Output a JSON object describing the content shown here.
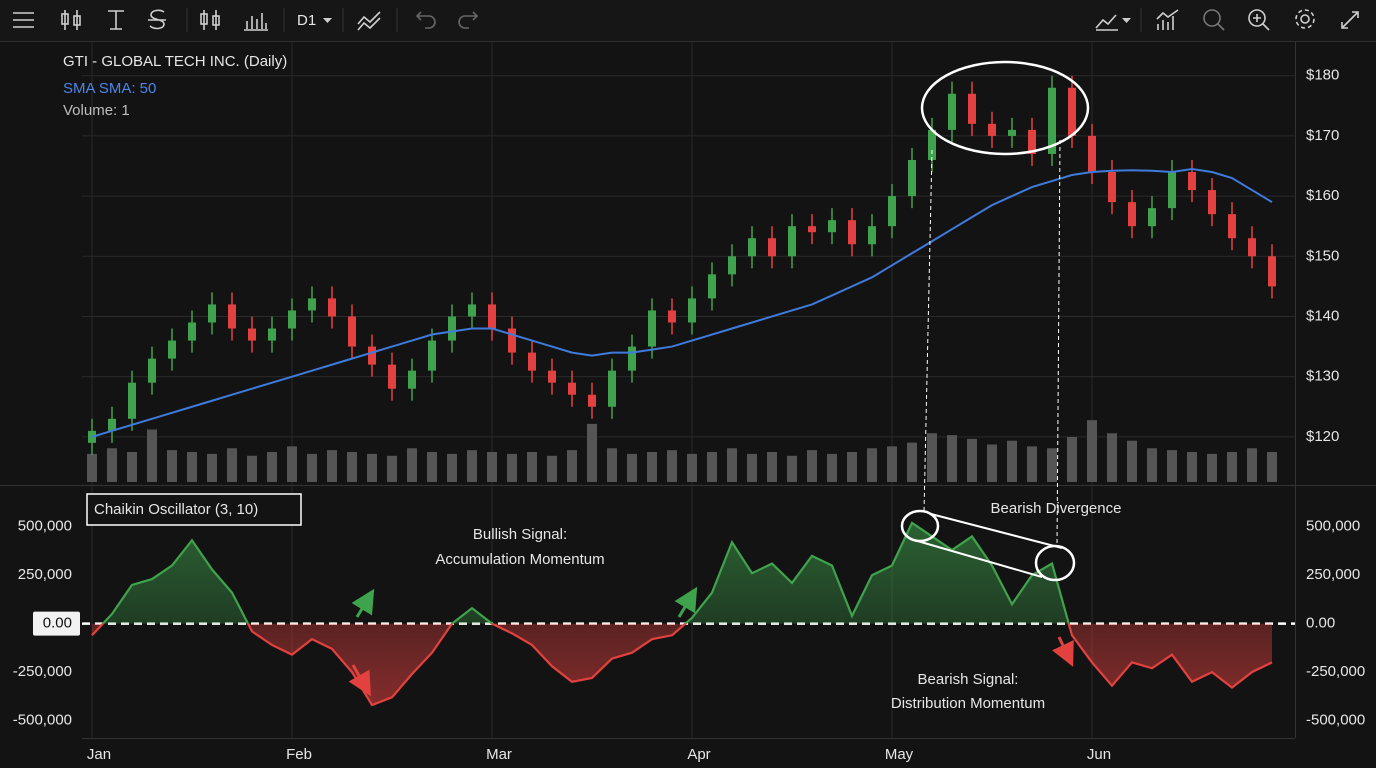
{
  "toolbar": {
    "timeframe": "D1"
  },
  "chart_data": [
    {
      "type": "candlestick",
      "title": "GTI - GLOBAL TECH INC. (Daily)",
      "open": [
        119,
        121,
        123,
        129,
        133,
        136,
        139,
        142,
        138,
        136,
        138,
        141,
        143,
        140,
        135,
        132,
        128,
        131,
        136,
        140,
        142,
        138,
        134,
        131,
        129,
        127,
        125,
        131,
        135,
        141,
        139,
        143,
        147,
        150,
        153,
        150,
        155,
        154,
        156,
        152,
        155,
        160,
        166,
        171,
        177,
        172,
        170,
        171,
        167,
        178,
        170,
        164,
        159,
        155,
        158,
        164,
        161,
        157,
        153,
        150
      ],
      "high": [
        123,
        125,
        131,
        135,
        138,
        141,
        144,
        144,
        140,
        140,
        143,
        145,
        145,
        142,
        137,
        134,
        133,
        138,
        142,
        144,
        144,
        140,
        136,
        133,
        131,
        129,
        133,
        137,
        143,
        143,
        145,
        149,
        152,
        155,
        155,
        157,
        157,
        158,
        158,
        157,
        162,
        168,
        173,
        179,
        179,
        174,
        173,
        173,
        180,
        180,
        172,
        166,
        161,
        160,
        166,
        166,
        163,
        159,
        155,
        152
      ],
      "low": [
        117,
        119,
        121,
        127,
        131,
        134,
        137,
        136,
        134,
        134,
        136,
        139,
        138,
        133,
        130,
        126,
        126,
        129,
        134,
        138,
        136,
        132,
        129,
        127,
        125,
        123,
        123,
        129,
        133,
        137,
        137,
        141,
        145,
        148,
        148,
        148,
        152,
        152,
        150,
        150,
        153,
        158,
        164,
        169,
        170,
        168,
        168,
        165,
        165,
        168,
        162,
        157,
        153,
        153,
        156,
        159,
        155,
        151,
        148,
        143
      ],
      "close": [
        121,
        123,
        129,
        133,
        136,
        139,
        142,
        138,
        136,
        138,
        141,
        143,
        140,
        135,
        132,
        128,
        131,
        136,
        140,
        142,
        138,
        134,
        131,
        129,
        127,
        125,
        131,
        135,
        141,
        139,
        143,
        147,
        150,
        153,
        150,
        155,
        154,
        156,
        152,
        155,
        160,
        166,
        171,
        177,
        172,
        170,
        171,
        167,
        178,
        170,
        164,
        159,
        155,
        158,
        164,
        161,
        157,
        153,
        150,
        145
      ],
      "up_color": "#3fa24c",
      "down_color": "#e2413f",
      "series": [
        {
          "name": "SMA SMA: 50",
          "type": "line",
          "color": "#3f7bdc",
          "values": [
            120,
            121,
            122,
            123,
            124,
            125,
            126,
            127,
            128,
            129,
            130,
            131,
            132,
            133,
            134,
            135,
            136,
            137,
            137.5,
            138,
            138,
            137,
            136,
            135,
            134,
            133.5,
            134,
            134,
            134.5,
            135,
            136,
            137,
            138,
            139,
            140,
            141,
            142,
            143.5,
            145,
            146.5,
            148.5,
            150.5,
            152.5,
            154.5,
            156.5,
            158.5,
            160,
            161.5,
            162.5,
            163.5,
            164,
            164.2,
            164.3,
            164.2,
            164,
            164.5,
            164,
            163,
            161,
            159
          ]
        },
        {
          "name": "Volume: 1",
          "type": "bar",
          "axis": "y2",
          "color": "#555555",
          "values": [
            1.5,
            1.8,
            1.6,
            2.8,
            1.7,
            1.6,
            1.5,
            1.8,
            1.4,
            1.6,
            1.9,
            1.5,
            1.7,
            1.6,
            1.5,
            1.4,
            1.8,
            1.6,
            1.5,
            1.7,
            1.6,
            1.5,
            1.6,
            1.4,
            1.7,
            3.1,
            1.8,
            1.5,
            1.6,
            1.7,
            1.5,
            1.6,
            1.8,
            1.5,
            1.6,
            1.4,
            1.7,
            1.5,
            1.6,
            1.8,
            1.9,
            2.1,
            2.6,
            2.5,
            2.3,
            2.0,
            2.2,
            1.9,
            1.8,
            2.4,
            3.3,
            2.6,
            2.2,
            1.8,
            1.7,
            1.6,
            1.5,
            1.6,
            1.8,
            1.6
          ]
        }
      ],
      "ylim": [
        112.5,
        185.6
      ],
      "yticks": [
        {
          "value": 120,
          "label": "$120"
        },
        {
          "value": 130,
          "label": "$130"
        },
        {
          "value": 140,
          "label": "$140"
        },
        {
          "value": 150,
          "label": "$150"
        },
        {
          "value": 160,
          "label": "$160"
        },
        {
          "value": 170,
          "label": "$170"
        },
        {
          "value": 180,
          "label": "$180"
        }
      ],
      "y2lim": [
        0,
        8
      ],
      "grid": true
    },
    {
      "type": "oscillator",
      "title": "Chaikin Oscillator (3, 10)",
      "categories": [
        "Jan",
        null,
        null,
        null,
        null,
        null,
        null,
        null,
        null,
        null,
        "Feb",
        null,
        null,
        null,
        null,
        null,
        null,
        null,
        null,
        null,
        "Mar",
        null,
        null,
        null,
        null,
        null,
        null,
        null,
        null,
        null,
        "Apr",
        null,
        null,
        null,
        null,
        null,
        null,
        null,
        null,
        null,
        "May",
        null,
        null,
        null,
        null,
        null,
        null,
        null,
        null,
        null,
        "Jun",
        null,
        null,
        null,
        null,
        null,
        null,
        null,
        null,
        null
      ],
      "values": [
        -60000,
        50000,
        200000,
        230000,
        300000,
        430000,
        280000,
        160000,
        -40000,
        -110000,
        -160000,
        -80000,
        -130000,
        -250000,
        -420000,
        -380000,
        -260000,
        -150000,
        0,
        80000,
        0,
        -50000,
        -110000,
        -220000,
        -300000,
        -280000,
        -180000,
        -150000,
        -80000,
        -60000,
        30000,
        160000,
        420000,
        260000,
        310000,
        210000,
        350000,
        300000,
        40000,
        250000,
        300000,
        520000,
        450000,
        380000,
        450000,
        300000,
        100000,
        250000,
        310000,
        -60000,
        -200000,
        -320000,
        -200000,
        -230000,
        -160000,
        -300000,
        -250000,
        -330000,
        -250000,
        -200000
      ],
      "pos_color": "#3fa24c",
      "neg_color": "#e2413f",
      "ylim": [
        -590000,
        700000
      ],
      "yticks": [
        {
          "value": -500000,
          "label": "-500,000"
        },
        {
          "value": -250000,
          "label": "-250,000"
        },
        {
          "value": 0,
          "label": "0.00"
        },
        {
          "value": 250000,
          "label": "250,000"
        },
        {
          "value": 500000,
          "label": "500,000"
        }
      ],
      "annotations": [
        {
          "lines": [
            "Bullish Signal:",
            "Accumulation Momentum"
          ]
        },
        {
          "lines": [
            "Bearish Divergence"
          ]
        },
        {
          "lines": [
            "Bearish Signal:",
            "Distribution Momentum"
          ]
        }
      ]
    }
  ]
}
